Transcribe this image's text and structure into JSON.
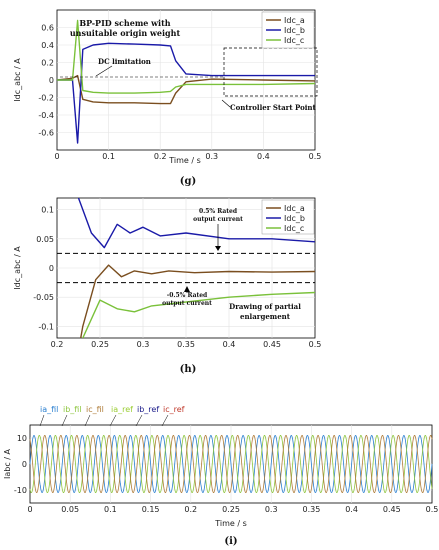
{
  "colors": {
    "a": "#7a4e1f",
    "b": "#1a1aa8",
    "c": "#7ac13a",
    "ia": "#2a7fd0",
    "ib": "#8ec63f",
    "ic": "#b07d3a",
    "ref_a": "#9acd32",
    "ref_b": "#1a1a8a",
    "ref_c": "#c0392b"
  },
  "chart_data": [
    {
      "id": "g",
      "type": "line",
      "caption": "(g)",
      "title_line1": "BP-PID scheme with",
      "title_line2": "unsuitable origin weight",
      "xlabel": "Time / s",
      "ylabel": "Idc_abc / A",
      "xlim": [
        0,
        0.5
      ],
      "ylim": [
        -0.8,
        0.8
      ],
      "xticks": [
        "0",
        "0.1",
        "0.2",
        "0.3",
        "0.4",
        "0.5"
      ],
      "yticks": [
        "-0.6",
        "-0.4",
        "-0.2",
        "0",
        "0.2",
        "0.4",
        "0.6"
      ],
      "legend": [
        "Idc_a",
        "Idc_b",
        "Idc_c"
      ],
      "annotations": {
        "dc_limitation": "DC limitation",
        "start_point": "Controller Start Point"
      },
      "series": [
        {
          "name": "Idc_a",
          "x": [
            0,
            0.03,
            0.04,
            0.05,
            0.07,
            0.1,
            0.15,
            0.2,
            0.22,
            0.23,
            0.25,
            0.3,
            0.4,
            0.5
          ],
          "y": [
            0,
            0.02,
            0.05,
            -0.22,
            -0.25,
            -0.26,
            -0.26,
            -0.27,
            -0.27,
            -0.15,
            -0.02,
            0.01,
            0.0,
            -0.01
          ]
        },
        {
          "name": "Idc_b",
          "x": [
            0,
            0.03,
            0.04,
            0.05,
            0.07,
            0.1,
            0.15,
            0.2,
            0.22,
            0.23,
            0.25,
            0.3,
            0.4,
            0.5
          ],
          "y": [
            0,
            0.0,
            -0.72,
            0.35,
            0.4,
            0.42,
            0.41,
            0.4,
            0.39,
            0.22,
            0.07,
            0.05,
            0.05,
            0.05
          ]
        },
        {
          "name": "Idc_c",
          "x": [
            0,
            0.03,
            0.04,
            0.05,
            0.07,
            0.1,
            0.15,
            0.2,
            0.22,
            0.23,
            0.25,
            0.3,
            0.4,
            0.5
          ],
          "y": [
            0,
            0.0,
            0.68,
            -0.12,
            -0.14,
            -0.15,
            -0.15,
            -0.14,
            -0.13,
            -0.08,
            -0.05,
            -0.05,
            -0.05,
            -0.04
          ]
        }
      ]
    },
    {
      "id": "h",
      "type": "line",
      "caption": "(h)",
      "ylabel": "Idc_abc / A",
      "xlim": [
        0.2,
        0.5
      ],
      "ylim": [
        -0.12,
        0.12
      ],
      "xticks": [
        "0.2",
        "0.25",
        "0.3",
        "0.35",
        "0.4",
        "0.45",
        "0.5"
      ],
      "yticks": [
        "-0.1",
        "-0.05",
        "0",
        "0.05",
        "0.1"
      ],
      "legend": [
        "Idc_a",
        "Idc_b",
        "Idc_c"
      ],
      "hlines": [
        0.025,
        -0.025
      ],
      "annotations": {
        "pos_line1": "0.5% Rated",
        "pos_line2": "output current",
        "neg_line1": "-0.5% Rated",
        "neg_line2": "output current",
        "drawing_line1": "Drawing of partial",
        "drawing_line2": "enlargement"
      },
      "series": [
        {
          "name": "Idc_a",
          "x": [
            0.2,
            0.23,
            0.245,
            0.26,
            0.275,
            0.29,
            0.31,
            0.33,
            0.36,
            0.4,
            0.45,
            0.5
          ],
          "y": [
            -0.35,
            -0.1,
            -0.02,
            0.005,
            -0.015,
            -0.005,
            -0.01,
            -0.005,
            -0.008,
            -0.006,
            -0.007,
            -0.006
          ]
        },
        {
          "name": "Idc_b",
          "x": [
            0.2,
            0.225,
            0.24,
            0.255,
            0.27,
            0.285,
            0.3,
            0.32,
            0.35,
            0.4,
            0.45,
            0.5
          ],
          "y": [
            0.3,
            0.12,
            0.06,
            0.035,
            0.075,
            0.06,
            0.07,
            0.055,
            0.06,
            0.05,
            0.05,
            0.045
          ]
        },
        {
          "name": "Idc_c",
          "x": [
            0.2,
            0.23,
            0.25,
            0.27,
            0.29,
            0.31,
            0.34,
            0.37,
            0.4,
            0.45,
            0.5
          ],
          "y": [
            -0.3,
            -0.12,
            -0.055,
            -0.07,
            -0.075,
            -0.065,
            -0.06,
            -0.055,
            -0.05,
            -0.045,
            -0.042
          ]
        }
      ]
    },
    {
      "id": "i",
      "type": "line",
      "caption": "(i)",
      "xlabel": "Time / s",
      "ylabel": "Iabc / A",
      "xlim": [
        0,
        0.5
      ],
      "ylim": [
        -15,
        15
      ],
      "xticks": [
        "0",
        "0.05",
        "0.1",
        "0.15",
        "0.2",
        "0.25",
        "0.3",
        "0.35",
        "0.4",
        "0.45",
        "0.5"
      ],
      "yticks": [
        "-10",
        "0",
        "10"
      ],
      "legend": [
        "ia_fil",
        "ib_fil",
        "ic_fil",
        "ia_ref",
        "ib_ref",
        "ic_ref"
      ],
      "series": [
        {
          "name": "ia_fil",
          "amplitude": 11,
          "frequency_hz": 50,
          "phase_deg": 0
        },
        {
          "name": "ib_fil",
          "amplitude": 11,
          "frequency_hz": 50,
          "phase_deg": -120
        },
        {
          "name": "ic_fil",
          "amplitude": 11,
          "frequency_hz": 50,
          "phase_deg": 120
        }
      ]
    }
  ]
}
